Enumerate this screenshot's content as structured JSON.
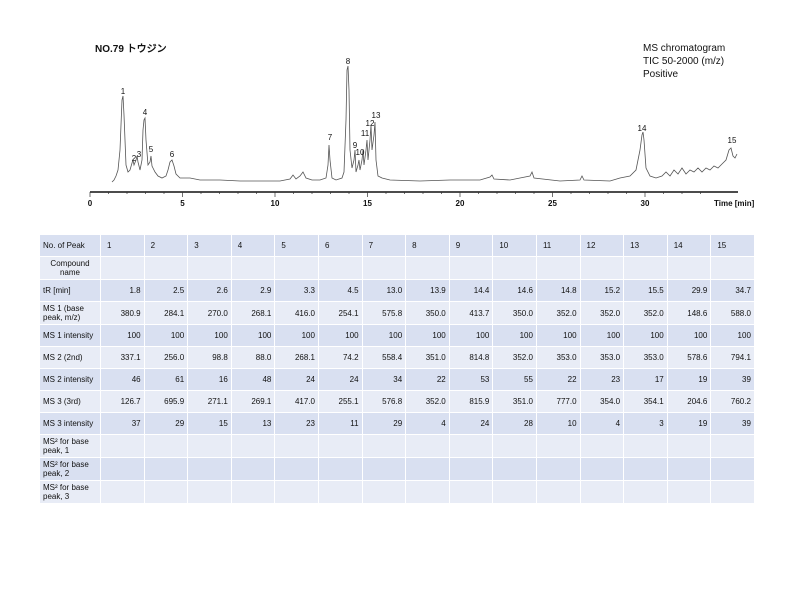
{
  "title": "NO.79 トウジン",
  "chromatogram": {
    "info": [
      "MS chromatogram",
      "TIC 50-2000 (m/z)",
      "Positive"
    ],
    "x_axis_label": "Time [min]",
    "x_ticks": [
      "0",
      "5",
      "10",
      "15",
      "20",
      "25",
      "30"
    ],
    "peak_labels": [
      "1",
      "2",
      "3",
      "4",
      "5",
      "6",
      "7",
      "8",
      "9",
      "10",
      "11",
      "12",
      "13",
      "14",
      "15"
    ]
  },
  "table": {
    "header_label": "No. of Peak",
    "peak_numbers": [
      "1",
      "2",
      "3",
      "4",
      "5",
      "6",
      "7",
      "8",
      "9",
      "10",
      "11",
      "12",
      "13",
      "14",
      "15"
    ],
    "rows": [
      {
        "label": "Compound name",
        "values": [
          "",
          "",
          "",
          "",
          "",
          "",
          "",
          "",
          "",
          "",
          "",
          "",
          "",
          "",
          ""
        ]
      },
      {
        "label": "tR [min]",
        "values": [
          "1.8",
          "2.5",
          "2.6",
          "2.9",
          "3.3",
          "4.5",
          "13.0",
          "13.9",
          "14.4",
          "14.6",
          "14.8",
          "15.2",
          "15.5",
          "29.9",
          "34.7"
        ]
      },
      {
        "label": "MS 1 (base peak, m/z)",
        "values": [
          "380.9",
          "284.1",
          "270.0",
          "268.1",
          "416.0",
          "254.1",
          "575.8",
          "350.0",
          "413.7",
          "350.0",
          "352.0",
          "352.0",
          "352.0",
          "148.6",
          "588.0"
        ]
      },
      {
        "label": "MS 1 intensity",
        "values": [
          "100",
          "100",
          "100",
          "100",
          "100",
          "100",
          "100",
          "100",
          "100",
          "100",
          "100",
          "100",
          "100",
          "100",
          "100"
        ]
      },
      {
        "label": "MS 2 (2nd)",
        "values": [
          "337.1",
          "256.0",
          "98.8",
          "88.0",
          "268.1",
          "74.2",
          "558.4",
          "351.0",
          "814.8",
          "352.0",
          "353.0",
          "353.0",
          "353.0",
          "578.6",
          "794.1"
        ]
      },
      {
        "label": "MS 2 intensity",
        "values": [
          "46",
          "61",
          "16",
          "48",
          "24",
          "24",
          "34",
          "22",
          "53",
          "55",
          "22",
          "23",
          "17",
          "19",
          "39"
        ]
      },
      {
        "label": "MS 3 (3rd)",
        "values": [
          "126.7",
          "695.9",
          "271.1",
          "269.1",
          "417.0",
          "255.1",
          "576.8",
          "352.0",
          "815.9",
          "351.0",
          "777.0",
          "354.0",
          "354.1",
          "204.6",
          "760.2"
        ]
      },
      {
        "label": "MS 3 intensity",
        "values": [
          "37",
          "29",
          "15",
          "13",
          "23",
          "11",
          "29",
          "4",
          "24",
          "28",
          "10",
          "4",
          "3",
          "19",
          "39"
        ]
      },
      {
        "label": "MS² for base peak, 1",
        "values": [
          "",
          "",
          "",
          "",
          "",
          "",
          "",
          "",
          "",
          "",
          "",
          "",
          "",
          "",
          ""
        ]
      },
      {
        "label": "MS² for base peak, 2",
        "values": [
          "",
          "",
          "",
          "",
          "",
          "",
          "",
          "",
          "",
          "",
          "",
          "",
          "",
          "",
          ""
        ]
      },
      {
        "label": "MS² for base peak, 3",
        "values": [
          "",
          "",
          "",
          "",
          "",
          "",
          "",
          "",
          "",
          "",
          "",
          "",
          "",
          "",
          ""
        ]
      }
    ]
  }
}
